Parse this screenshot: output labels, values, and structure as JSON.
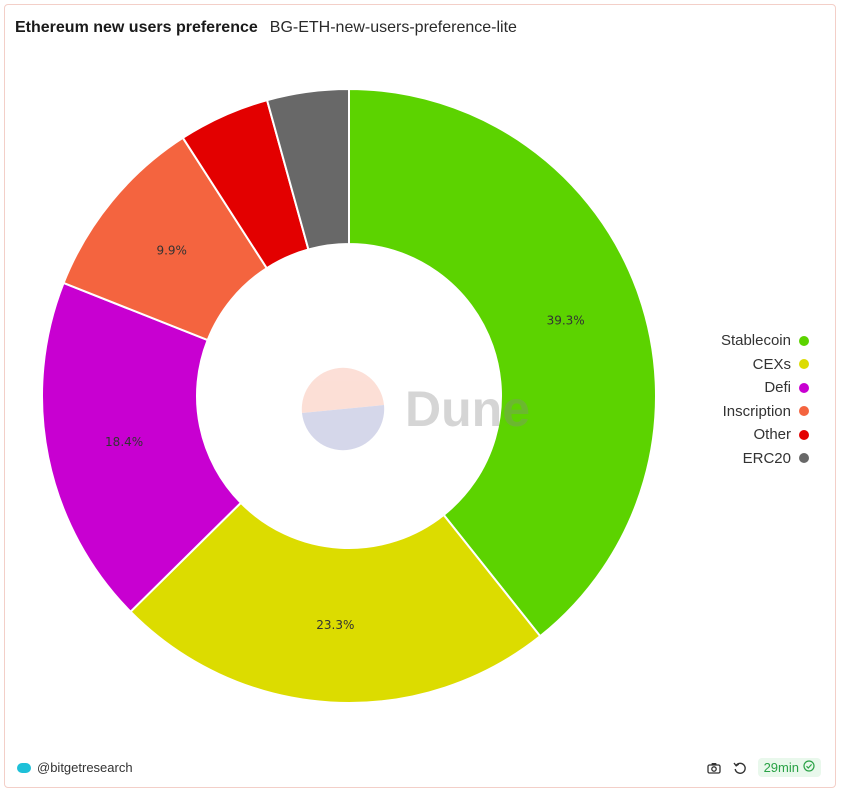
{
  "header": {
    "title": "Ethereum new users preference",
    "subtitle": "BG-ETH-new-users-preference-lite"
  },
  "watermark": {
    "text": "Dune"
  },
  "footer": {
    "author": "@bitgetresearch",
    "refresh_age": "29min",
    "camera_icon": "camera-icon",
    "refresh_icon": "refresh-icon",
    "check_icon": "check-circle-icon",
    "badge_color": "#2aa246"
  },
  "chart_data": {
    "type": "pie",
    "donut": true,
    "legend_position": "right",
    "series": [
      {
        "name": "Stablecoin",
        "value": 39.3,
        "label": "39.3%",
        "color": "#5cd300"
      },
      {
        "name": "CEXs",
        "value": 23.3,
        "label": "23.3%",
        "color": "#dcdc00"
      },
      {
        "name": "Defi",
        "value": 18.4,
        "label": "18.4%",
        "color": "#c800d1"
      },
      {
        "name": "Inscription",
        "value": 9.9,
        "label": "9.9%",
        "color": "#f4643f"
      },
      {
        "name": "Other",
        "value": 4.8,
        "label": "",
        "color": "#e30000"
      },
      {
        "name": "ERC20",
        "value": 4.3,
        "label": "",
        "color": "#686868"
      }
    ]
  }
}
